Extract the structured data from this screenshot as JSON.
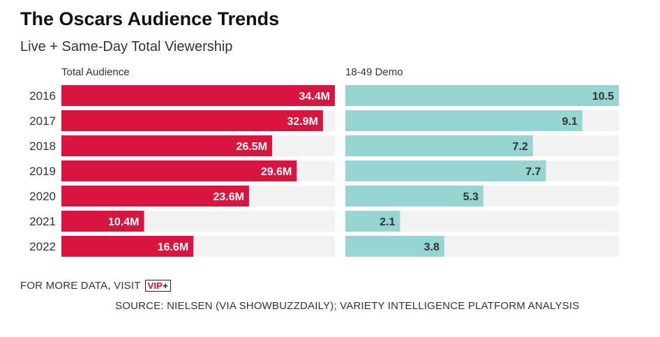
{
  "header": {
    "title": "The Oscars Audience Trends",
    "subtitle": "Live + Same-Day Total Viewership"
  },
  "footer": {
    "more_data": "FOR MORE DATA, VISIT",
    "vip_text": "VIP",
    "vip_plus": "+",
    "source": "SOURCE: NIELSEN (VIA SHOWBUZZDAILY); VARIETY INTELLIGENCE PLATFORM ANALYSIS"
  },
  "colors": {
    "total_bar": "#d9143f",
    "demo_bar": "#97d5d3",
    "track": "#f2f2f2"
  },
  "chart_data": [
    {
      "type": "bar",
      "orientation": "horizontal",
      "title": "Total Audience",
      "categories": [
        "2016",
        "2017",
        "2018",
        "2019",
        "2020",
        "2021",
        "2022"
      ],
      "values": [
        34.4,
        32.9,
        26.5,
        29.6,
        23.6,
        10.4,
        16.6
      ],
      "labels": [
        "34.4M",
        "32.9M",
        "26.5M",
        "29.6M",
        "23.6M",
        "10.4M",
        "16.6M"
      ],
      "xlim": [
        0,
        34.4
      ]
    },
    {
      "type": "bar",
      "orientation": "horizontal",
      "title": "18-49 Demo",
      "categories": [
        "2016",
        "2017",
        "2018",
        "2019",
        "2020",
        "2021",
        "2022"
      ],
      "values": [
        10.5,
        9.1,
        7.2,
        7.7,
        5.3,
        2.1,
        3.8
      ],
      "labels": [
        "10.5",
        "9.1",
        "7.2",
        "7.7",
        "5.3",
        "2.1",
        "3.8"
      ],
      "xlim": [
        0,
        10.5
      ]
    }
  ]
}
